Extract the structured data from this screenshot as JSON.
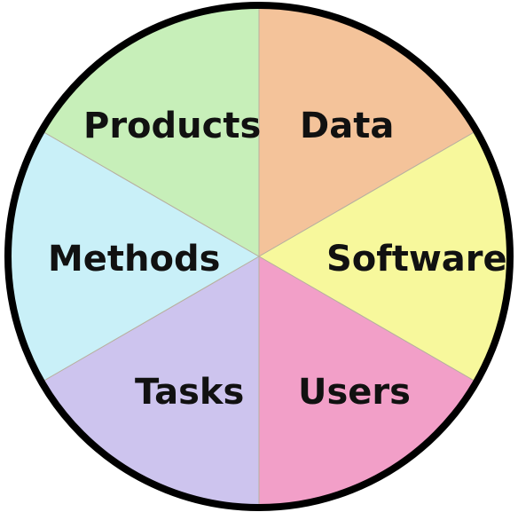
{
  "segments": [
    {
      "label": "Data",
      "color": "#f4c39a"
    },
    {
      "label": "Software",
      "color": "#f7f89c"
    },
    {
      "label": "Users",
      "color": "#f29fc8"
    },
    {
      "label": "Tasks",
      "color": "#cdc4ee"
    },
    {
      "label": "Methods",
      "color": "#c9f0f8"
    },
    {
      "label": "Products",
      "color": "#c7efb9"
    }
  ]
}
